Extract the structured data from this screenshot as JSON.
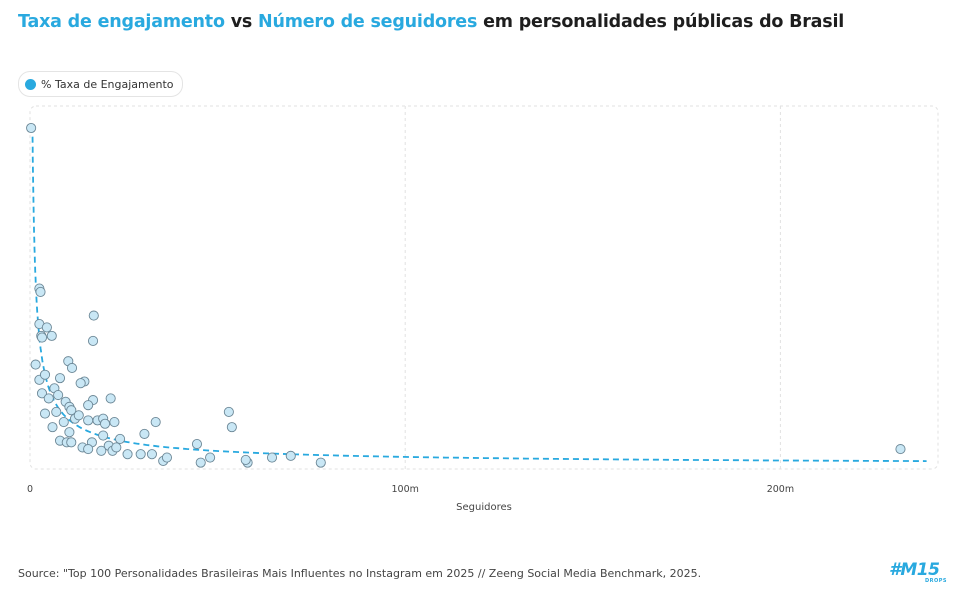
{
  "title": {
    "part1": "Taxa de engajamento",
    "part2": " vs ",
    "part3": "Número de seguidores",
    "part4": " em personalidades públicas do Brasil"
  },
  "legend": {
    "label": "% Taxa de Engajamento"
  },
  "source": "Source: \"Top 100 Personalidades Brasileiras Mais Influentes no Instagram em 2025 // Zeeng Social Media Benchmark, 2025.",
  "logo": {
    "main": "#M15",
    "sub": "DROPS"
  },
  "colors": {
    "accent": "#29a9df",
    "point_fill": "#c9e7f5",
    "point_stroke": "#6c8796",
    "grid": "#e2e2e2"
  },
  "chart_data": {
    "type": "scatter",
    "xlabel": "Seguidores",
    "ylabel": "",
    "xticks": [
      0,
      100,
      200
    ],
    "xtick_labels": [
      "0",
      "100m",
      "200m"
    ],
    "xlim": [
      0,
      242
    ],
    "ylim": [
      0,
      100
    ],
    "grid": true,
    "legend_position": "top-left",
    "trendline": {
      "type": "power",
      "style": "dashed",
      "color": "#29a9df"
    },
    "series": [
      {
        "name": "% Taxa de Engajamento",
        "points": [
          [
            0.3,
            100
          ],
          [
            2.5,
            52.5
          ],
          [
            2.8,
            51.5
          ],
          [
            2.5,
            42
          ],
          [
            3.0,
            38.5
          ],
          [
            3.2,
            38
          ],
          [
            4.5,
            41
          ],
          [
            5.8,
            38.5
          ],
          [
            17.0,
            44.5
          ],
          [
            16.8,
            37
          ],
          [
            1.5,
            30
          ],
          [
            10.2,
            31
          ],
          [
            11.2,
            29
          ],
          [
            2.5,
            25.5
          ],
          [
            4.0,
            27
          ],
          [
            8.0,
            26
          ],
          [
            14.5,
            25
          ],
          [
            13.5,
            24.5
          ],
          [
            3.2,
            21.5
          ],
          [
            5.0,
            20
          ],
          [
            6.5,
            23
          ],
          [
            7.5,
            21
          ],
          [
            9.5,
            19
          ],
          [
            16.8,
            19.5
          ],
          [
            21.5,
            20
          ],
          [
            15.5,
            18
          ],
          [
            10.5,
            17.5
          ],
          [
            11.0,
            16.5
          ],
          [
            4.0,
            15.5
          ],
          [
            7.0,
            16
          ],
          [
            12.0,
            14
          ],
          [
            13.0,
            15
          ],
          [
            18.0,
            13.5
          ],
          [
            19.5,
            14
          ],
          [
            22.5,
            13
          ],
          [
            33.5,
            13
          ],
          [
            53.0,
            16
          ],
          [
            53.8,
            11.5
          ],
          [
            6.0,
            11.5
          ],
          [
            9.0,
            13
          ],
          [
            10.5,
            10
          ],
          [
            15.5,
            13.5
          ],
          [
            20.0,
            12.5
          ],
          [
            30.5,
            9.5
          ],
          [
            19.5,
            9
          ],
          [
            24.0,
            8
          ],
          [
            8.0,
            7.5
          ],
          [
            9.8,
            7
          ],
          [
            11.0,
            7
          ],
          [
            16.5,
            7
          ],
          [
            21.0,
            6
          ],
          [
            14.0,
            5.5
          ],
          [
            15.5,
            5
          ],
          [
            19.0,
            4.5
          ],
          [
            22.0,
            4.5
          ],
          [
            23.0,
            5.5
          ],
          [
            26.0,
            3.5
          ],
          [
            29.5,
            3.5
          ],
          [
            32.5,
            3.5
          ],
          [
            35.5,
            1.5
          ],
          [
            36.5,
            2.5
          ],
          [
            44.5,
            6.5
          ],
          [
            45.5,
            1
          ],
          [
            48.0,
            2.5
          ],
          [
            58.0,
            1
          ],
          [
            57.5,
            1.8
          ],
          [
            64.5,
            2.5
          ],
          [
            69.5,
            3
          ],
          [
            77.5,
            1
          ],
          [
            232.0,
            5
          ]
        ]
      }
    ]
  }
}
